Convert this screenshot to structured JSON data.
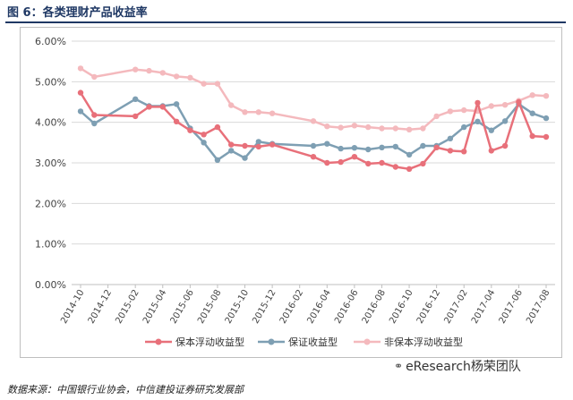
{
  "header": {
    "title": "图 6：各类理财产品收益率"
  },
  "footer": {
    "source": "数据来源：中国银行业协会，中信建投证券研究发展部",
    "watermark": "eResearch杨荣团队"
  },
  "chart_data": {
    "type": "line",
    "title": "",
    "xlabel": "",
    "ylabel": "",
    "ylim": [
      0,
      6
    ],
    "yticks": [
      "0.00%",
      "1.00%",
      "2.00%",
      "3.00%",
      "4.00%",
      "5.00%",
      "6.00%"
    ],
    "ytick_values": [
      0,
      1,
      2,
      3,
      4,
      5,
      6
    ],
    "xtick_labels": [
      "2014-10",
      "2014-12",
      "2015-02",
      "2015-04",
      "2015-06",
      "2015-08",
      "2015-10",
      "2015-12",
      "2016-02",
      "2016-04",
      "2016-06",
      "2016-08",
      "2016-10",
      "2016-12",
      "2017-02",
      "2017-04",
      "2017-06",
      "2017-08"
    ],
    "legend_position": "bottom",
    "grid": {
      "horizontal": true,
      "vertical": false
    },
    "series": [
      {
        "name": "保本浮动收益型",
        "color": "#e8707a",
        "points": [
          [
            "2014-10",
            4.73
          ],
          [
            "2014-11",
            4.18
          ],
          [
            "2015-02",
            4.15
          ],
          [
            "2015-03",
            4.38
          ],
          [
            "2015-04",
            4.38
          ],
          [
            "2015-05",
            4.02
          ],
          [
            "2015-06",
            3.8
          ],
          [
            "2015-07",
            3.7
          ],
          [
            "2015-08",
            3.88
          ],
          [
            "2015-09",
            3.45
          ],
          [
            "2015-10",
            3.42
          ],
          [
            "2015-11",
            3.4
          ],
          [
            "2015-12",
            3.45
          ],
          [
            "2016-03",
            3.15
          ],
          [
            "2016-04",
            3.0
          ],
          [
            "2016-05",
            3.02
          ],
          [
            "2016-06",
            3.15
          ],
          [
            "2016-07",
            2.98
          ],
          [
            "2016-08",
            3.0
          ],
          [
            "2016-09",
            2.9
          ],
          [
            "2016-10",
            2.85
          ],
          [
            "2016-11",
            2.98
          ],
          [
            "2016-12",
            3.38
          ],
          [
            "2017-01",
            3.3
          ],
          [
            "2017-02",
            3.28
          ],
          [
            "2017-03",
            4.48
          ],
          [
            "2017-04",
            3.3
          ],
          [
            "2017-05",
            3.42
          ],
          [
            "2017-06",
            4.5
          ],
          [
            "2017-07",
            3.66
          ],
          [
            "2017-08",
            3.64
          ]
        ]
      },
      {
        "name": "保证收益型",
        "color": "#7e9fb3",
        "points": [
          [
            "2014-10",
            4.27
          ],
          [
            "2014-11",
            3.97
          ],
          [
            "2015-02",
            4.57
          ],
          [
            "2015-03",
            4.4
          ],
          [
            "2015-04",
            4.4
          ],
          [
            "2015-05",
            4.45
          ],
          [
            "2015-06",
            3.85
          ],
          [
            "2015-07",
            3.5
          ],
          [
            "2015-08",
            3.07
          ],
          [
            "2015-09",
            3.3
          ],
          [
            "2015-10",
            3.12
          ],
          [
            "2015-11",
            3.52
          ],
          [
            "2015-12",
            3.47
          ],
          [
            "2016-03",
            3.42
          ],
          [
            "2016-04",
            3.47
          ],
          [
            "2016-05",
            3.35
          ],
          [
            "2016-06",
            3.37
          ],
          [
            "2016-07",
            3.33
          ],
          [
            "2016-08",
            3.38
          ],
          [
            "2016-09",
            3.4
          ],
          [
            "2016-10",
            3.2
          ],
          [
            "2016-11",
            3.42
          ],
          [
            "2016-12",
            3.42
          ],
          [
            "2017-01",
            3.6
          ],
          [
            "2017-02",
            3.88
          ],
          [
            "2017-03",
            4.02
          ],
          [
            "2017-04",
            3.8
          ],
          [
            "2017-05",
            4.03
          ],
          [
            "2017-06",
            4.45
          ],
          [
            "2017-07",
            4.22
          ],
          [
            "2017-08",
            4.1
          ]
        ]
      },
      {
        "name": "非保本浮动收益型",
        "color": "#f4b9bd",
        "points": [
          [
            "2014-10",
            5.33
          ],
          [
            "2014-11",
            5.12
          ],
          [
            "2015-02",
            5.3
          ],
          [
            "2015-03",
            5.27
          ],
          [
            "2015-04",
            5.22
          ],
          [
            "2015-05",
            5.13
          ],
          [
            "2015-06",
            5.1
          ],
          [
            "2015-07",
            4.95
          ],
          [
            "2015-08",
            4.95
          ],
          [
            "2015-09",
            4.42
          ],
          [
            "2015-10",
            4.25
          ],
          [
            "2015-11",
            4.25
          ],
          [
            "2015-12",
            4.22
          ],
          [
            "2016-03",
            4.03
          ],
          [
            "2016-04",
            3.9
          ],
          [
            "2016-05",
            3.87
          ],
          [
            "2016-06",
            3.92
          ],
          [
            "2016-07",
            3.88
          ],
          [
            "2016-08",
            3.85
          ],
          [
            "2016-09",
            3.85
          ],
          [
            "2016-10",
            3.82
          ],
          [
            "2016-11",
            3.85
          ],
          [
            "2016-12",
            4.15
          ],
          [
            "2017-01",
            4.27
          ],
          [
            "2017-02",
            4.3
          ],
          [
            "2017-03",
            4.28
          ],
          [
            "2017-04",
            4.4
          ],
          [
            "2017-05",
            4.43
          ],
          [
            "2017-06",
            4.53
          ],
          [
            "2017-07",
            4.67
          ],
          [
            "2017-08",
            4.65
          ]
        ]
      }
    ]
  }
}
